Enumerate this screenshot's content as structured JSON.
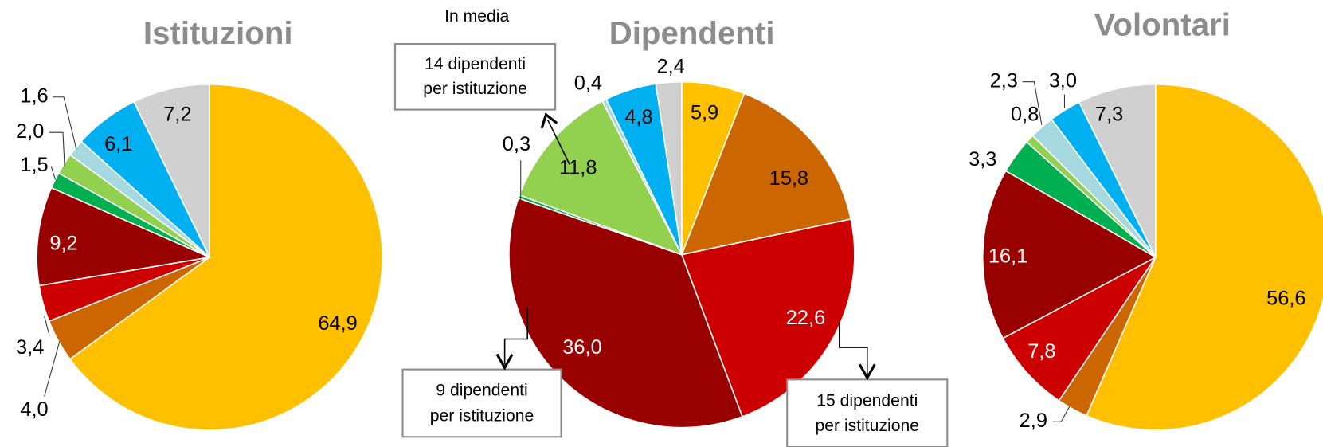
{
  "chart_data": [
    {
      "type": "pie",
      "title": "Istituzioni",
      "values": [
        64.9,
        4.0,
        3.4,
        9.2,
        1.5,
        2.0,
        1.6,
        6.1,
        7.2
      ],
      "value_labels": [
        "64,9",
        "4,0",
        "3,4",
        "9,2",
        "1,5",
        "2,0",
        "1,6",
        "6,1",
        "7,2"
      ],
      "colors": [
        "#ffc000",
        "#cc6600",
        "#cc0000",
        "#990000",
        "#00b050",
        "#92d050",
        "#a6d8e0",
        "#00b0f0",
        "#d0d0d0"
      ]
    },
    {
      "type": "pie",
      "title": "Dipendenti",
      "values": [
        5.9,
        15.8,
        22.6,
        36.0,
        0.3,
        11.8,
        0.4,
        4.8,
        2.4
      ],
      "value_labels": [
        "5,9",
        "15,8",
        "22,6",
        "36,0",
        "0,3",
        "11,8",
        "0,4",
        "4,8",
        "2,4"
      ],
      "colors": [
        "#ffc000",
        "#cc6600",
        "#cc0000",
        "#990000",
        "#00b050",
        "#92d050",
        "#a6d8e0",
        "#00b0f0",
        "#d0d0d0"
      ],
      "annotations": [
        "In media",
        [
          "14 dipendenti",
          "per istituzione"
        ],
        [
          "9 dipendenti",
          "per istituzione"
        ],
        [
          "15 dipendenti",
          "per istituzione"
        ]
      ]
    },
    {
      "type": "pie",
      "title": "Volontari",
      "values": [
        56.6,
        2.9,
        7.8,
        16.1,
        3.3,
        0.8,
        2.3,
        3.0,
        7.3
      ],
      "value_labels": [
        "56,6",
        "2,9",
        "7,8",
        "16,1",
        "3,3",
        "0,8",
        "2,3",
        "3,0",
        "7,3"
      ],
      "colors": [
        "#ffc000",
        "#cc6600",
        "#cc0000",
        "#990000",
        "#00b050",
        "#92d050",
        "#a6d8e0",
        "#00b0f0",
        "#d0d0d0"
      ]
    }
  ]
}
